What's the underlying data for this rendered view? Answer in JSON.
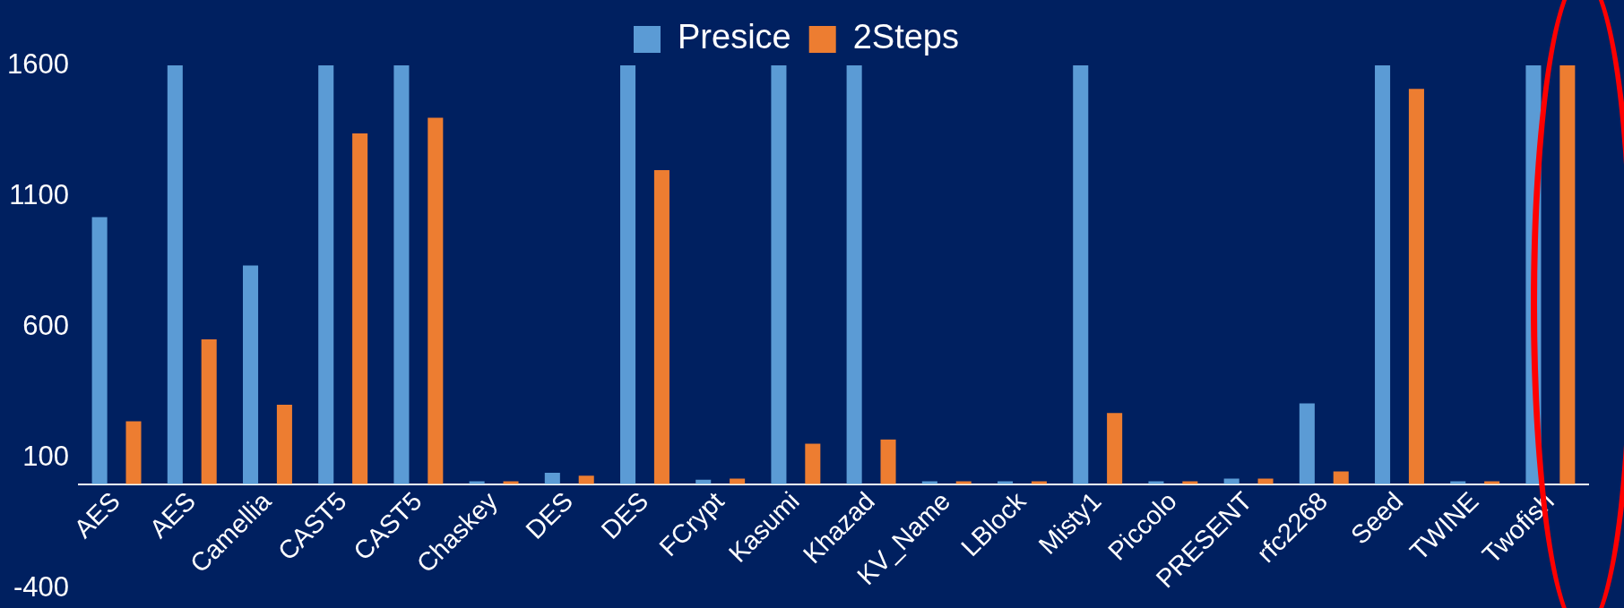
{
  "chart_data": {
    "type": "bar",
    "categories": [
      "AES",
      "AES",
      "Camellia",
      "CAST5",
      "CAST5",
      "Chaskey",
      "DES",
      "DES",
      "FCrypt",
      "Kasumi",
      "Khazad",
      "KV_Name",
      "LBlock",
      "Misty1",
      "Piccolo",
      "PRESENT",
      "rfc2268",
      "Seed",
      "TWINE",
      "Twofish"
    ],
    "series": [
      {
        "name": "Presice",
        "color": "#5b9bd5",
        "values": [
          1020,
          1600,
          835,
          1600,
          1600,
          10,
          43,
          1600,
          16,
          1600,
          1600,
          10,
          10,
          1600,
          10,
          21,
          308,
          1600,
          10,
          1600
        ]
      },
      {
        "name": "2Steps",
        "color": "#ed7d31",
        "values": [
          240,
          553,
          303,
          1340,
          1400,
          10,
          32,
          1200,
          21,
          154,
          170,
          10,
          10,
          271,
          10,
          21,
          48,
          1510,
          10,
          1600
        ]
      }
    ],
    "ylim": [
      -400,
      1600
    ],
    "yticks": [
      -400,
      100,
      600,
      1100,
      1600
    ],
    "grid": false,
    "legend": "top"
  }
}
